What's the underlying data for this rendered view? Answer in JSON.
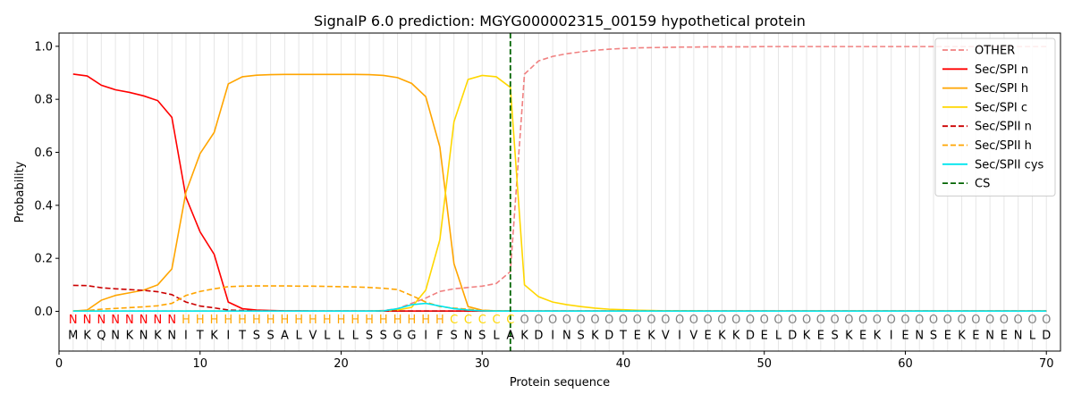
{
  "chart_data": {
    "type": "line",
    "title": "SignalP 6.0 prediction: MGYG000002315_00159 hypothetical protein",
    "xlabel": "Protein sequence",
    "ylabel": "Probability",
    "xlim": [
      0,
      71
    ],
    "ylim": [
      -0.15,
      1.05
    ],
    "x_ticks": [
      0,
      10,
      20,
      30,
      40,
      50,
      60,
      70
    ],
    "y_ticks": [
      0.0,
      0.2,
      0.4,
      0.6,
      0.8,
      1.0
    ],
    "x_tick_labels": [
      "0",
      "10",
      "20",
      "30",
      "40",
      "50",
      "60",
      "70"
    ],
    "y_tick_labels": [
      "0.0",
      "0.2",
      "0.4",
      "0.6",
      "0.8",
      "1.0"
    ],
    "grid": "vertical lines at each residue",
    "legend_position": "top-right",
    "sequence": [
      "M",
      "K",
      "Q",
      "N",
      "K",
      "N",
      "K",
      "N",
      "I",
      "T",
      "K",
      "I",
      "T",
      "S",
      "S",
      "A",
      "L",
      "V",
      "L",
      "L",
      "L",
      "S",
      "S",
      "G",
      "G",
      "I",
      "F",
      "S",
      "N",
      "S",
      "L",
      "A",
      "K",
      "D",
      "I",
      "N",
      "S",
      "K",
      "D",
      "T",
      "E",
      "K",
      "V",
      "I",
      "V",
      "E",
      "K",
      "K",
      "D",
      "E",
      "L",
      "D",
      "K",
      "E",
      "S",
      "K",
      "E",
      "K",
      "I",
      "E",
      "N",
      "S",
      "E",
      "K",
      "E",
      "N",
      "E",
      "N",
      "L",
      "D"
    ],
    "region_labels": [
      "N",
      "N",
      "N",
      "N",
      "N",
      "N",
      "N",
      "N",
      "H",
      "H",
      "H",
      "H",
      "H",
      "H",
      "H",
      "H",
      "H",
      "H",
      "H",
      "H",
      "H",
      "H",
      "H",
      "H",
      "H",
      "H",
      "H",
      "C",
      "C",
      "C",
      "C",
      "C",
      "O",
      "O",
      "O",
      "O",
      "O",
      "O",
      "O",
      "O",
      "O",
      "O",
      "O",
      "O",
      "O",
      "O",
      "O",
      "O",
      "O",
      "O",
      "O",
      "O",
      "O",
      "O",
      "O",
      "O",
      "O",
      "O",
      "O",
      "O",
      "O",
      "O",
      "O",
      "O",
      "O",
      "O",
      "O",
      "O",
      "O",
      "O"
    ],
    "region_colors": {
      "N": "#ff0000",
      "H": "#ffa500",
      "C": "#ffd700",
      "O": "#808080"
    },
    "cs_position": 32,
    "series": [
      {
        "name": "OTHER",
        "color": "#f08080",
        "dash": "dashed",
        "values": [
          0.001,
          0.001,
          0.001,
          0.001,
          0.001,
          0.001,
          0.001,
          0.001,
          0.001,
          0.001,
          0.001,
          0.001,
          0.001,
          0.001,
          0.001,
          0.001,
          0.001,
          0.001,
          0.001,
          0.001,
          0.001,
          0.001,
          0.003,
          0.01,
          0.03,
          0.05,
          0.075,
          0.085,
          0.09,
          0.095,
          0.105,
          0.15,
          0.895,
          0.945,
          0.962,
          0.972,
          0.979,
          0.985,
          0.989,
          0.992,
          0.994,
          0.995,
          0.996,
          0.997,
          0.997,
          0.998,
          0.998,
          0.998,
          0.998,
          0.999,
          0.999,
          0.999,
          0.999,
          0.999,
          0.999,
          0.999,
          0.999,
          0.999,
          0.999,
          0.999,
          0.999,
          0.999,
          0.999,
          0.999,
          0.999,
          0.999,
          0.999,
          0.999,
          0.999,
          0.999
        ]
      },
      {
        "name": "Sec/SPI n",
        "color": "#ff0000",
        "dash": "solid",
        "values": [
          0.895,
          0.888,
          0.853,
          0.836,
          0.826,
          0.813,
          0.795,
          0.732,
          0.43,
          0.3,
          0.215,
          0.035,
          0.01,
          0.005,
          0.003,
          0.002,
          0.002,
          0.001,
          0.001,
          0.001,
          0.001,
          0.001,
          0.001,
          0.001,
          0.001,
          0.001,
          0.001,
          0.001,
          0.001,
          0.001,
          0.001,
          0.001,
          0.001,
          0.001,
          0.001,
          0.001,
          0.001,
          0.001,
          0.001,
          0.001,
          0.001,
          0.001,
          0.001,
          0.001,
          0.001,
          0.001,
          0.001,
          0.001,
          0.001,
          0.001,
          0.001,
          0.001,
          0.001,
          0.001,
          0.001,
          0.001,
          0.001,
          0.001,
          0.001,
          0.001,
          0.001,
          0.001,
          0.001,
          0.001,
          0.001,
          0.001,
          0.001,
          0.001,
          0.001,
          0.001
        ]
      },
      {
        "name": "Sec/SPI h",
        "color": "#ffa500",
        "dash": "solid",
        "values": [
          0.001,
          0.005,
          0.042,
          0.06,
          0.07,
          0.08,
          0.1,
          0.16,
          0.45,
          0.595,
          0.675,
          0.858,
          0.885,
          0.891,
          0.893,
          0.894,
          0.894,
          0.894,
          0.894,
          0.894,
          0.894,
          0.893,
          0.89,
          0.882,
          0.86,
          0.81,
          0.62,
          0.18,
          0.018,
          0.004,
          0.002,
          0.001,
          0.001,
          0.001,
          0.001,
          0.001,
          0.001,
          0.001,
          0.001,
          0.001,
          0.001,
          0.001,
          0.001,
          0.001,
          0.001,
          0.001,
          0.001,
          0.001,
          0.001,
          0.001,
          0.001,
          0.001,
          0.001,
          0.001,
          0.001,
          0.001,
          0.001,
          0.001,
          0.001,
          0.001,
          0.001,
          0.001,
          0.001,
          0.001,
          0.001,
          0.001,
          0.001,
          0.001,
          0.001,
          0.001
        ]
      },
      {
        "name": "Sec/SPI c",
        "color": "#ffd700",
        "dash": "solid",
        "values": [
          0.001,
          0.001,
          0.001,
          0.001,
          0.001,
          0.001,
          0.001,
          0.001,
          0.001,
          0.001,
          0.001,
          0.001,
          0.001,
          0.001,
          0.001,
          0.001,
          0.001,
          0.001,
          0.001,
          0.001,
          0.001,
          0.001,
          0.002,
          0.005,
          0.015,
          0.08,
          0.27,
          0.715,
          0.875,
          0.89,
          0.885,
          0.845,
          0.1,
          0.055,
          0.035,
          0.025,
          0.018,
          0.012,
          0.008,
          0.006,
          0.004,
          0.003,
          0.002,
          0.002,
          0.002,
          0.001,
          0.001,
          0.001,
          0.001,
          0.001,
          0.001,
          0.001,
          0.001,
          0.001,
          0.001,
          0.001,
          0.001,
          0.001,
          0.001,
          0.001,
          0.001,
          0.001,
          0.001,
          0.001,
          0.001,
          0.001,
          0.001,
          0.001,
          0.001,
          0.001
        ]
      },
      {
        "name": "Sec/SPII n",
        "color": "#cc0000",
        "dash": "dashed",
        "values": [
          0.098,
          0.097,
          0.089,
          0.085,
          0.082,
          0.079,
          0.074,
          0.063,
          0.035,
          0.02,
          0.013,
          0.005,
          0.003,
          0.002,
          0.002,
          0.001,
          0.001,
          0.001,
          0.001,
          0.001,
          0.001,
          0.001,
          0.001,
          0.001,
          0.001,
          0.001,
          0.001,
          0.001,
          0.001,
          0.001,
          0.001,
          0.001,
          0.001,
          0.001,
          0.001,
          0.001,
          0.001,
          0.001,
          0.001,
          0.001,
          0.001,
          0.001,
          0.001,
          0.001,
          0.001,
          0.001,
          0.001,
          0.001,
          0.001,
          0.001,
          0.001,
          0.001,
          0.001,
          0.001,
          0.001,
          0.001,
          0.001,
          0.001,
          0.001,
          0.001,
          0.001,
          0.001,
          0.001,
          0.001,
          0.001,
          0.001,
          0.001,
          0.001,
          0.001,
          0.001
        ]
      },
      {
        "name": "Sec/SPII h",
        "color": "#ffa500",
        "dash": "dashed",
        "values": [
          0.001,
          0.003,
          0.008,
          0.011,
          0.014,
          0.017,
          0.021,
          0.03,
          0.06,
          0.075,
          0.085,
          0.093,
          0.095,
          0.096,
          0.096,
          0.096,
          0.095,
          0.095,
          0.094,
          0.093,
          0.092,
          0.09,
          0.087,
          0.082,
          0.06,
          0.035,
          0.018,
          0.012,
          0.008,
          0.004,
          0.002,
          0.001,
          0.001,
          0.001,
          0.001,
          0.001,
          0.001,
          0.001,
          0.001,
          0.001,
          0.001,
          0.001,
          0.001,
          0.001,
          0.001,
          0.001,
          0.001,
          0.001,
          0.001,
          0.001,
          0.001,
          0.001,
          0.001,
          0.001,
          0.001,
          0.001,
          0.001,
          0.001,
          0.001,
          0.001,
          0.001,
          0.001,
          0.001,
          0.001,
          0.001,
          0.001,
          0.001,
          0.001,
          0.001,
          0.001
        ]
      },
      {
        "name": "Sec/SPII cys",
        "color": "#00e5ee",
        "dash": "solid",
        "values": [
          0.001,
          0.001,
          0.001,
          0.001,
          0.001,
          0.001,
          0.001,
          0.001,
          0.001,
          0.001,
          0.001,
          0.001,
          0.001,
          0.001,
          0.001,
          0.001,
          0.001,
          0.001,
          0.001,
          0.001,
          0.001,
          0.001,
          0.002,
          0.01,
          0.025,
          0.03,
          0.02,
          0.01,
          0.005,
          0.002,
          0.001,
          0.001,
          0.001,
          0.001,
          0.001,
          0.001,
          0.001,
          0.001,
          0.001,
          0.001,
          0.001,
          0.001,
          0.001,
          0.001,
          0.001,
          0.001,
          0.001,
          0.001,
          0.001,
          0.001,
          0.001,
          0.001,
          0.001,
          0.001,
          0.001,
          0.001,
          0.001,
          0.001,
          0.001,
          0.001,
          0.001,
          0.001,
          0.001,
          0.001,
          0.001,
          0.001,
          0.001,
          0.001,
          0.001,
          0.001
        ]
      }
    ],
    "cs_series": {
      "name": "CS",
      "color": "#006400",
      "dash": "dashed"
    }
  }
}
